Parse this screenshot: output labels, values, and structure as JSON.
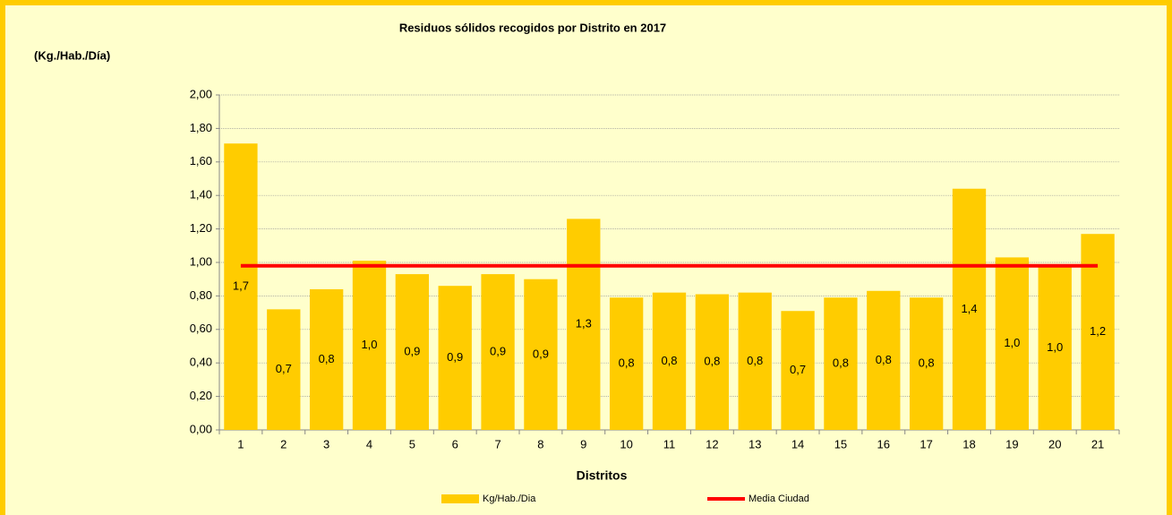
{
  "chart_data": {
    "type": "bar",
    "title": "Residuos sólidos recogidos por Distrito en 2017",
    "y_label": "(Kg./Hab./Día)",
    "x_label": "Distritos",
    "categories": [
      "1",
      "2",
      "3",
      "4",
      "5",
      "6",
      "7",
      "8",
      "9",
      "10",
      "11",
      "12",
      "13",
      "14",
      "15",
      "16",
      "17",
      "18",
      "19",
      "20",
      "21"
    ],
    "series": [
      {
        "name": "Kg/Hab./Dia",
        "type": "bar",
        "color": "#ffcc00",
        "values": [
          1.71,
          0.72,
          0.84,
          1.01,
          0.93,
          0.86,
          0.93,
          0.9,
          1.26,
          0.79,
          0.82,
          0.81,
          0.82,
          0.71,
          0.79,
          0.83,
          0.79,
          1.44,
          1.03,
          0.98,
          1.17
        ],
        "value_labels": [
          "1,7",
          "0,7",
          "0,8",
          "1,0",
          "0,9",
          "0,9",
          "0,9",
          "0,9",
          "1,3",
          "0,8",
          "0,8",
          "0,8",
          "0,8",
          "0,7",
          "0,8",
          "0,8",
          "0,8",
          "1,4",
          "1,0",
          "1,0",
          "1,2"
        ]
      },
      {
        "name": "Media Ciudad",
        "type": "line",
        "color": "#ff0000",
        "values": [
          0.98,
          0.98,
          0.98,
          0.98,
          0.98,
          0.98,
          0.98,
          0.98,
          0.98,
          0.98,
          0.98,
          0.98,
          0.98,
          0.98,
          0.98,
          0.98,
          0.98,
          0.98,
          0.98,
          0.98,
          0.98
        ]
      }
    ],
    "ylim": [
      0,
      2
    ],
    "yticks": [
      {
        "value": 0,
        "label": "0,00"
      },
      {
        "value": 0.2,
        "label": "0,20"
      },
      {
        "value": 0.4,
        "label": "0,40"
      },
      {
        "value": 0.6,
        "label": "0,60"
      },
      {
        "value": 0.8,
        "label": "0,80"
      },
      {
        "value": 1,
        "label": "1,00"
      },
      {
        "value": 1.2,
        "label": "1,20"
      },
      {
        "value": 1.4,
        "label": "1,40"
      },
      {
        "value": 1.6,
        "label": "1,60"
      },
      {
        "value": 1.8,
        "label": "1,80"
      },
      {
        "value": 2,
        "label": "2,00"
      }
    ],
    "grid": true,
    "legend": "bottom"
  }
}
